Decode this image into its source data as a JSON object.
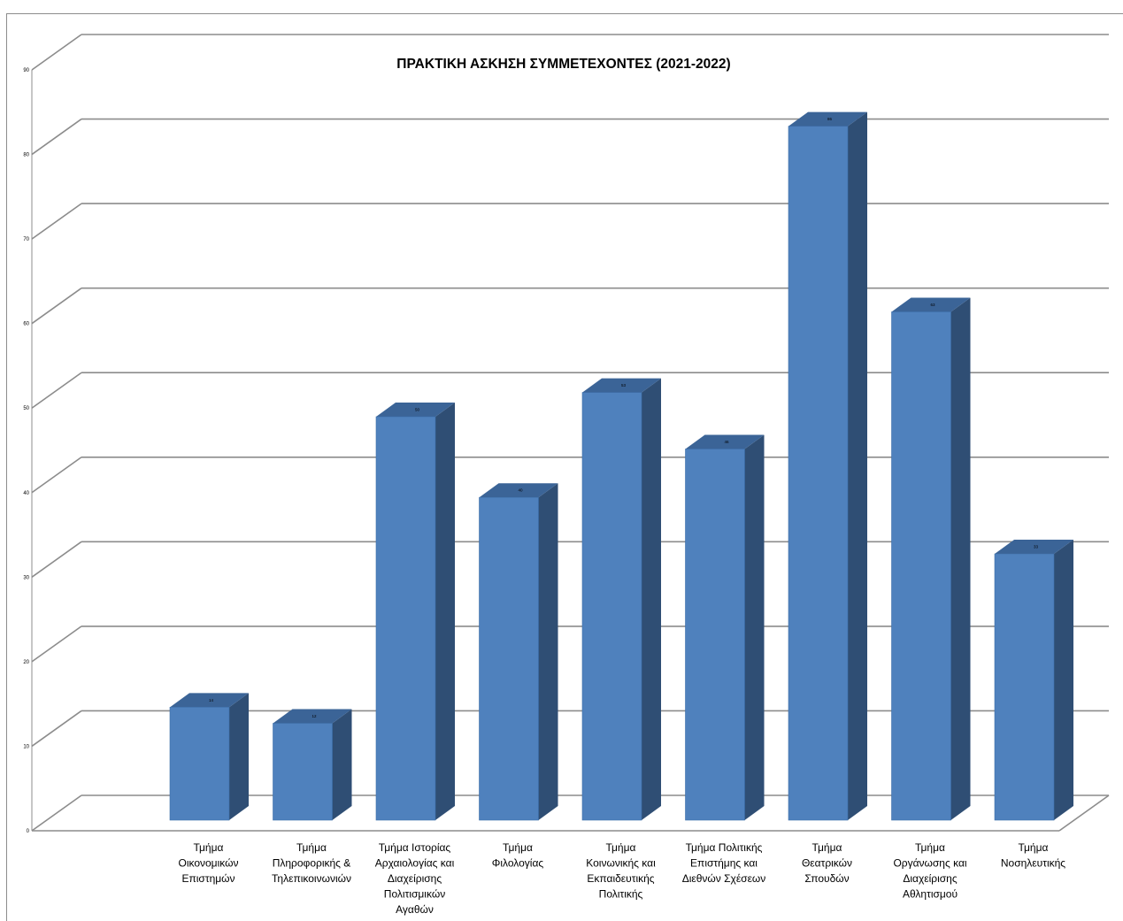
{
  "chart_data": {
    "type": "bar",
    "title": "ΠΡΑΚΤΙΚΗ ΑΣΚΗΣΗ  ΣΥΜΜΕΤΕΧΟΝΤΕΣ (2021-2022)",
    "xlabel": "",
    "ylabel": "",
    "ylim": [
      0,
      90
    ],
    "yticks": [
      "0",
      "10",
      "20",
      "30",
      "40",
      "50",
      "60",
      "70",
      "80",
      "90"
    ],
    "grid": true,
    "legend": "none",
    "style": "3d-column",
    "categories": [
      [
        "Τμήμα",
        "Οικονομικών",
        "Επιστημών"
      ],
      [
        "Τμήμα",
        "Πληροφορικής &",
        "Τηλεπικοινωνιών"
      ],
      [
        "Τμήμα Ιστορίας",
        "Αρχαιολογίας και",
        "Διαχείρισης",
        "Πολιτισμικών",
        "Αγαθών"
      ],
      [
        "Τμήμα",
        "Φιλολογίας"
      ],
      [
        "Τμήμα",
        "Κοινωνικής και",
        "Εκπαιδευτικής",
        "Πολιτικής"
      ],
      [
        "Τμήμα Πολιτικής",
        "Επιστήμης και",
        "Διεθνών Σχέσεων"
      ],
      [
        "Τμήμα",
        "Θεατρικών",
        "Σπουδών"
      ],
      [
        "Τμήμα",
        "Οργάνωσης και",
        "Διαχείρισης",
        "Αθλητισμού"
      ],
      [
        "Τμήμα",
        "Νοσηλευτικής"
      ]
    ],
    "values": [
      14,
      12,
      50,
      40,
      53,
      46,
      86,
      63,
      33
    ],
    "data_labels": [
      "14",
      "12",
      "50",
      "40",
      "53",
      "46",
      "86",
      "63",
      "33"
    ],
    "colors": {
      "bar_front": "#4f81bd",
      "bar_side": "#2f4e74",
      "bar_top": "#3b6497",
      "grid": "#8c8c8c"
    }
  }
}
